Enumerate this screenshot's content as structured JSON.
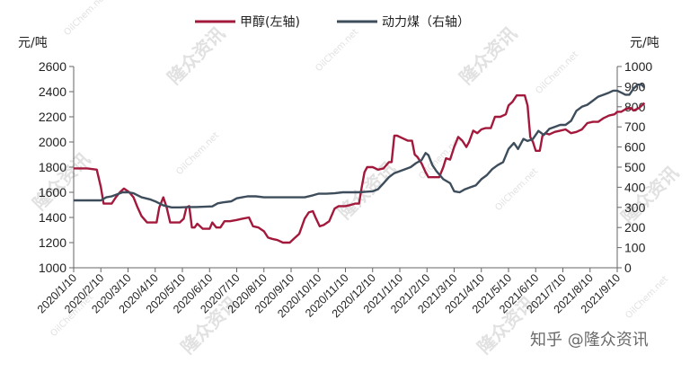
{
  "chart_data": {
    "type": "line",
    "left_axis": {
      "unit": "元/吨",
      "min": 1000,
      "max": 2600,
      "step": 200,
      "ticks": [
        "1000",
        "1200",
        "1400",
        "1600",
        "1800",
        "2000",
        "2200",
        "2400",
        "2600"
      ]
    },
    "right_axis": {
      "unit": "元/吨",
      "min": 0,
      "max": 1000,
      "step": 100,
      "ticks": [
        "0",
        "100",
        "200",
        "300",
        "400",
        "500",
        "600",
        "700",
        "800",
        "900",
        "1000"
      ]
    },
    "x_labels": [
      "2020/1/10",
      "2020/2/10",
      "2020/3/10",
      "2020/4/10",
      "2020/5/10",
      "2020/6/10",
      "2020/7/10",
      "2020/8/10",
      "2020/9/10",
      "2020/10/10",
      "2020/11/10",
      "2020/12/10",
      "2021/1/10",
      "2021/2/10",
      "2021/3/10",
      "2021/4/10",
      "2021/5/10",
      "2021/6/10",
      "2021/7/10",
      "2021/8/10",
      "2021/9/10"
    ],
    "grid": false,
    "legend_placement": "top-center",
    "series": [
      {
        "name": "甲醇(左轴)",
        "axis": "left",
        "color": "#a3193c",
        "points": [
          [
            0.0,
            1790
          ],
          [
            0.5,
            1790
          ],
          [
            0.85,
            1780
          ],
          [
            1.0,
            1640
          ],
          [
            1.1,
            1510
          ],
          [
            1.4,
            1510
          ],
          [
            1.55,
            1560
          ],
          [
            1.7,
            1600
          ],
          [
            1.85,
            1630
          ],
          [
            2.05,
            1600
          ],
          [
            2.2,
            1560
          ],
          [
            2.35,
            1480
          ],
          [
            2.5,
            1410
          ],
          [
            2.7,
            1360
          ],
          [
            3.05,
            1360
          ],
          [
            3.15,
            1480
          ],
          [
            3.3,
            1560
          ],
          [
            3.42,
            1480
          ],
          [
            3.55,
            1360
          ],
          [
            3.9,
            1360
          ],
          [
            4.05,
            1390
          ],
          [
            4.15,
            1480
          ],
          [
            4.25,
            1490
          ],
          [
            4.35,
            1320
          ],
          [
            4.45,
            1320
          ],
          [
            4.55,
            1350
          ],
          [
            4.75,
            1310
          ],
          [
            5.0,
            1310
          ],
          [
            5.1,
            1360
          ],
          [
            5.25,
            1320
          ],
          [
            5.4,
            1320
          ],
          [
            5.55,
            1370
          ],
          [
            5.75,
            1370
          ],
          [
            6.0,
            1380
          ],
          [
            6.2,
            1390
          ],
          [
            6.45,
            1400
          ],
          [
            6.6,
            1330
          ],
          [
            6.8,
            1320
          ],
          [
            7.0,
            1290
          ],
          [
            7.15,
            1240
          ],
          [
            7.3,
            1230
          ],
          [
            7.5,
            1220
          ],
          [
            7.7,
            1200
          ],
          [
            7.95,
            1200
          ],
          [
            8.1,
            1230
          ],
          [
            8.3,
            1270
          ],
          [
            8.5,
            1390
          ],
          [
            8.65,
            1440
          ],
          [
            8.8,
            1450
          ],
          [
            8.9,
            1400
          ],
          [
            9.05,
            1330
          ],
          [
            9.2,
            1340
          ],
          [
            9.4,
            1370
          ],
          [
            9.6,
            1470
          ],
          [
            9.75,
            1490
          ],
          [
            10.0,
            1490
          ],
          [
            10.2,
            1500
          ],
          [
            10.35,
            1510
          ],
          [
            10.5,
            1510
          ],
          [
            10.6,
            1640
          ],
          [
            10.7,
            1760
          ],
          [
            10.8,
            1800
          ],
          [
            11.0,
            1800
          ],
          [
            11.2,
            1780
          ],
          [
            11.4,
            1790
          ],
          [
            11.6,
            1840
          ],
          [
            11.7,
            1840
          ],
          [
            11.8,
            2050
          ],
          [
            11.9,
            2050
          ],
          [
            12.1,
            2030
          ],
          [
            12.3,
            2010
          ],
          [
            12.45,
            2010
          ],
          [
            12.55,
            1900
          ],
          [
            12.65,
            1880
          ],
          [
            12.8,
            1830
          ],
          [
            12.95,
            1760
          ],
          [
            13.05,
            1720
          ],
          [
            13.15,
            1720
          ],
          [
            13.45,
            1720
          ],
          [
            13.6,
            1800
          ],
          [
            13.7,
            1870
          ],
          [
            13.85,
            1860
          ],
          [
            14.0,
            1960
          ],
          [
            14.15,
            2040
          ],
          [
            14.3,
            2010
          ],
          [
            14.45,
            1960
          ],
          [
            14.55,
            2000
          ],
          [
            14.7,
            2090
          ],
          [
            14.85,
            2070
          ],
          [
            15.0,
            2100
          ],
          [
            15.15,
            2110
          ],
          [
            15.35,
            2110
          ],
          [
            15.5,
            2200
          ],
          [
            15.7,
            2200
          ],
          [
            15.9,
            2220
          ],
          [
            16.0,
            2290
          ],
          [
            16.15,
            2320
          ],
          [
            16.3,
            2370
          ],
          [
            16.6,
            2370
          ],
          [
            16.7,
            2290
          ],
          [
            16.8,
            2040
          ],
          [
            16.9,
            2000
          ],
          [
            17.0,
            1930
          ],
          [
            17.15,
            1930
          ],
          [
            17.25,
            2050
          ],
          [
            17.35,
            2070
          ],
          [
            17.5,
            2060
          ],
          [
            17.7,
            2080
          ],
          [
            17.9,
            2090
          ],
          [
            18.1,
            2100
          ],
          [
            18.3,
            2070
          ],
          [
            18.5,
            2080
          ],
          [
            18.7,
            2100
          ],
          [
            18.9,
            2150
          ],
          [
            19.1,
            2160
          ],
          [
            19.3,
            2160
          ],
          [
            19.5,
            2190
          ],
          [
            19.7,
            2210
          ],
          [
            19.9,
            2220
          ],
          [
            20.0,
            2240
          ],
          [
            20.15,
            2240
          ],
          [
            20.3,
            2260
          ],
          [
            20.5,
            2270
          ],
          [
            20.6,
            2250
          ],
          [
            20.7,
            2260
          ],
          [
            20.8,
            2270
          ],
          [
            21.0,
            2310
          ]
        ]
      },
      {
        "name": "动力煤（右轴）",
        "axis": "right",
        "color": "#3e4d5c",
        "points": [
          [
            0.0,
            335
          ],
          [
            0.5,
            335
          ],
          [
            1.0,
            335
          ],
          [
            1.2,
            350
          ],
          [
            1.4,
            355
          ],
          [
            1.6,
            365
          ],
          [
            1.8,
            375
          ],
          [
            2.0,
            375
          ],
          [
            2.2,
            370
          ],
          [
            2.5,
            350
          ],
          [
            2.8,
            340
          ],
          [
            3.0,
            330
          ],
          [
            3.3,
            310
          ],
          [
            3.6,
            300
          ],
          [
            3.9,
            300
          ],
          [
            4.2,
            302
          ],
          [
            4.5,
            302
          ],
          [
            4.8,
            303
          ],
          [
            5.1,
            305
          ],
          [
            5.3,
            320
          ],
          [
            5.5,
            325
          ],
          [
            5.8,
            330
          ],
          [
            6.0,
            345
          ],
          [
            6.2,
            350
          ],
          [
            6.4,
            355
          ],
          [
            6.7,
            355
          ],
          [
            7.0,
            350
          ],
          [
            7.3,
            350
          ],
          [
            7.6,
            350
          ],
          [
            7.9,
            350
          ],
          [
            8.2,
            350
          ],
          [
            8.5,
            350
          ],
          [
            8.8,
            360
          ],
          [
            9.0,
            368
          ],
          [
            9.3,
            368
          ],
          [
            9.6,
            370
          ],
          [
            9.9,
            375
          ],
          [
            10.2,
            375
          ],
          [
            10.5,
            375
          ],
          [
            10.8,
            378
          ],
          [
            11.0,
            380
          ],
          [
            11.2,
            390
          ],
          [
            11.4,
            420
          ],
          [
            11.6,
            450
          ],
          [
            11.8,
            470
          ],
          [
            12.0,
            480
          ],
          [
            12.2,
            490
          ],
          [
            12.4,
            500
          ],
          [
            12.6,
            520
          ],
          [
            12.8,
            535
          ],
          [
            12.95,
            570
          ],
          [
            13.05,
            560
          ],
          [
            13.2,
            510
          ],
          [
            13.35,
            480
          ],
          [
            13.6,
            440
          ],
          [
            13.85,
            420
          ],
          [
            14.0,
            380
          ],
          [
            14.2,
            375
          ],
          [
            14.4,
            390
          ],
          [
            14.6,
            400
          ],
          [
            14.8,
            410
          ],
          [
            15.0,
            440
          ],
          [
            15.2,
            460
          ],
          [
            15.4,
            490
          ],
          [
            15.6,
            510
          ],
          [
            15.8,
            525
          ],
          [
            16.0,
            590
          ],
          [
            16.2,
            620
          ],
          [
            16.35,
            590
          ],
          [
            16.55,
            640
          ],
          [
            16.7,
            630
          ],
          [
            16.9,
            640
          ],
          [
            17.1,
            680
          ],
          [
            17.3,
            660
          ],
          [
            17.5,
            690
          ],
          [
            17.7,
            700
          ],
          [
            17.9,
            710
          ],
          [
            18.1,
            710
          ],
          [
            18.3,
            730
          ],
          [
            18.5,
            780
          ],
          [
            18.7,
            800
          ],
          [
            18.9,
            810
          ],
          [
            19.1,
            830
          ],
          [
            19.3,
            850
          ],
          [
            19.5,
            860
          ],
          [
            19.7,
            870
          ],
          [
            19.85,
            880
          ],
          [
            20.0,
            880
          ],
          [
            20.15,
            870
          ],
          [
            20.3,
            860
          ],
          [
            20.45,
            860
          ],
          [
            20.6,
            890
          ],
          [
            20.75,
            910
          ],
          [
            20.9,
            910
          ],
          [
            21.0,
            895
          ]
        ]
      }
    ]
  },
  "watermarks": {
    "logo_text": "隆众资讯",
    "site_text": "OilChem.net",
    "credit": "知乎 @隆众资讯"
  }
}
